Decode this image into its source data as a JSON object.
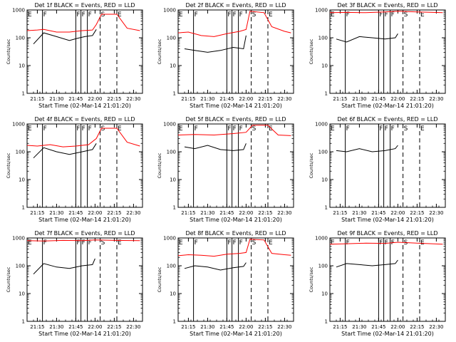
{
  "colors": {
    "background": "#ffffff",
    "events": "#000000",
    "lld": "#ff0000",
    "axes": "#000000"
  },
  "chart_data": [
    {
      "type": "line",
      "title": "Det 1f BLACK = Events, RED = LLD",
      "xlabel": "Start Time (02-Mar-14 21:01:20)",
      "ylabel": "Counts/sec",
      "yscale": "log",
      "ylim": [
        1,
        1000
      ],
      "xlim": [
        "21:07",
        "22:37"
      ],
      "xtick_labels": [
        "21:15",
        "21:30",
        "21:45",
        "22:00",
        "22:15",
        "22:30"
      ],
      "ytick_labels": [
        "1",
        "10",
        "100",
        "1000"
      ],
      "series": [
        {
          "name": "Events",
          "color": "#000000",
          "x": [
            "21:12",
            "21:20",
            "21:30",
            "21:40",
            "21:46",
            "21:52",
            "21:58",
            "22:01"
          ],
          "y": [
            60,
            150,
            110,
            80,
            95,
            110,
            120,
            200
          ]
        },
        {
          "name": "LLD",
          "color": "#ff0000",
          "x": [
            "21:07",
            "21:15",
            "21:20",
            "21:30",
            "21:40",
            "21:50",
            "21:58",
            "22:01",
            "22:05",
            "22:17",
            "22:25",
            "22:35"
          ],
          "y": [
            180,
            190,
            200,
            160,
            160,
            180,
            190,
            300,
            700,
            700,
            220,
            180
          ]
        }
      ],
      "markers": [
        {
          "label": "E",
          "x": "21:07",
          "style": "solid"
        },
        {
          "label": "F",
          "x": "21:19",
          "style": "solid"
        },
        {
          "label": "F",
          "x": "21:45",
          "style": "solid"
        },
        {
          "label": "F",
          "x": "21:49",
          "style": "solid"
        },
        {
          "label": "F",
          "x": "21:54",
          "style": "solid"
        },
        {
          "label": "S",
          "x": "22:04",
          "style": "dashed"
        },
        {
          "label": "E",
          "x": "22:17",
          "style": "dashed"
        }
      ]
    },
    {
      "type": "line",
      "title": "Det 2f BLACK = Events, RED = LLD",
      "xlabel": "Start Time (02-Mar-14 21:01:20)",
      "ylabel": "Counts/sec",
      "yscale": "log",
      "ylim": [
        1,
        1000
      ],
      "xlim": [
        "21:07",
        "22:37"
      ],
      "xtick_labels": [
        "21:15",
        "21:30",
        "21:45",
        "22:00",
        "22:15",
        "22:30"
      ],
      "ytick_labels": [
        "1",
        "10",
        "100",
        "1000"
      ],
      "series": [
        {
          "name": "Events",
          "color": "#000000",
          "x": [
            "21:12",
            "21:20",
            "21:30",
            "21:40",
            "21:50",
            "21:58",
            "22:00"
          ],
          "y": [
            40,
            35,
            30,
            35,
            45,
            40,
            120
          ]
        },
        {
          "name": "LLD",
          "color": "#ff0000",
          "x": [
            "21:07",
            "21:15",
            "21:25",
            "21:35",
            "21:45",
            "21:55",
            "22:00",
            "22:03",
            "22:14",
            "22:20",
            "22:30",
            "22:35"
          ],
          "y": [
            150,
            160,
            120,
            110,
            140,
            170,
            200,
            900,
            800,
            250,
            170,
            150
          ]
        }
      ],
      "markers": [
        {
          "label": "E",
          "x": "21:07",
          "style": "solid"
        },
        {
          "label": "F",
          "x": "21:19",
          "style": "solid"
        },
        {
          "label": "F",
          "x": "21:45",
          "style": "solid"
        },
        {
          "label": "F",
          "x": "21:49",
          "style": "solid"
        },
        {
          "label": "F",
          "x": "21:54",
          "style": "solid"
        },
        {
          "label": "S",
          "x": "22:04",
          "style": "dashed"
        },
        {
          "label": "E",
          "x": "22:17",
          "style": "dashed"
        }
      ]
    },
    {
      "type": "line",
      "title": "Det 3f BLACK = Events, RED = LLD",
      "xlabel": "Start Time (02-Mar-14 21:01:20)",
      "ylabel": "Counts/sec",
      "yscale": "log",
      "ylim": [
        1,
        1000
      ],
      "xlim": [
        "21:07",
        "22:37"
      ],
      "xtick_labels": [
        "21:15",
        "21:30",
        "21:45",
        "22:00",
        "22:15",
        "22:30"
      ],
      "ytick_labels": [
        "1",
        "10",
        "100",
        "1000"
      ],
      "series": [
        {
          "name": "Events",
          "color": "#000000",
          "x": [
            "21:12",
            "21:20",
            "21:30",
            "21:40",
            "21:50",
            "21:58",
            "22:00"
          ],
          "y": [
            90,
            70,
            110,
            100,
            90,
            100,
            140
          ]
        },
        {
          "name": "LLD",
          "color": "#ff0000",
          "x": [
            "21:07",
            "21:20",
            "21:35",
            "21:50",
            "22:00",
            "22:15",
            "22:35"
          ],
          "y": [
            800,
            820,
            800,
            850,
            900,
            850,
            800
          ]
        }
      ],
      "markers": [
        {
          "label": "E",
          "x": "21:07",
          "style": "solid"
        },
        {
          "label": "F",
          "x": "21:19",
          "style": "solid"
        },
        {
          "label": "F",
          "x": "21:45",
          "style": "solid"
        },
        {
          "label": "F",
          "x": "21:49",
          "style": "solid"
        },
        {
          "label": "F",
          "x": "21:54",
          "style": "solid"
        },
        {
          "label": "S",
          "x": "22:04",
          "style": "dashed"
        },
        {
          "label": "E",
          "x": "22:17",
          "style": "dashed"
        }
      ]
    },
    {
      "type": "line",
      "title": "Det 4f BLACK = Events, RED = LLD",
      "xlabel": "Start Time (02-Mar-14 21:01:20)",
      "ylabel": "Counts/sec",
      "yscale": "log",
      "ylim": [
        1,
        1000
      ],
      "xlim": [
        "21:07",
        "22:37"
      ],
      "xtick_labels": [
        "21:15",
        "21:30",
        "21:45",
        "22:00",
        "22:15",
        "22:30"
      ],
      "ytick_labels": [
        "1",
        "10",
        "100",
        "1000"
      ],
      "series": [
        {
          "name": "Events",
          "color": "#000000",
          "x": [
            "21:12",
            "21:20",
            "21:30",
            "21:40",
            "21:50",
            "21:58",
            "22:01"
          ],
          "y": [
            60,
            140,
            100,
            80,
            100,
            120,
            200
          ]
        },
        {
          "name": "LLD",
          "color": "#ff0000",
          "x": [
            "21:07",
            "21:15",
            "21:25",
            "21:35",
            "21:45",
            "21:55",
            "22:01",
            "22:05",
            "22:17",
            "22:25",
            "22:35"
          ],
          "y": [
            170,
            160,
            180,
            150,
            160,
            180,
            300,
            700,
            700,
            220,
            160
          ]
        }
      ],
      "markers": [
        {
          "label": "E",
          "x": "21:07",
          "style": "solid"
        },
        {
          "label": "F",
          "x": "21:19",
          "style": "solid"
        },
        {
          "label": "F",
          "x": "21:45",
          "style": "solid"
        },
        {
          "label": "F",
          "x": "21:49",
          "style": "solid"
        },
        {
          "label": "F",
          "x": "21:54",
          "style": "solid"
        },
        {
          "label": "S",
          "x": "22:04",
          "style": "dashed"
        },
        {
          "label": "E",
          "x": "22:17",
          "style": "dashed"
        }
      ]
    },
    {
      "type": "line",
      "title": "Det 5f BLACK = Events, RED = LLD",
      "xlabel": "Start Time (02-Mar-14 21:01:20)",
      "ylabel": "Counts/sec",
      "yscale": "log",
      "ylim": [
        1,
        1000
      ],
      "xlim": [
        "21:07",
        "22:37"
      ],
      "xtick_labels": [
        "21:15",
        "21:30",
        "21:45",
        "22:00",
        "22:15",
        "22:30"
      ],
      "ytick_labels": [
        "1",
        "10",
        "100",
        "1000"
      ],
      "series": [
        {
          "name": "Events",
          "color": "#000000",
          "x": [
            "21:12",
            "21:20",
            "21:30",
            "21:40",
            "21:50",
            "21:58",
            "22:00"
          ],
          "y": [
            150,
            130,
            170,
            120,
            110,
            120,
            200
          ]
        },
        {
          "name": "LLD",
          "color": "#ff0000",
          "x": [
            "21:07",
            "21:20",
            "21:35",
            "21:50",
            "22:00",
            "22:05",
            "22:17",
            "22:25",
            "22:35"
          ],
          "y": [
            400,
            420,
            400,
            450,
            500,
            900,
            900,
            400,
            380
          ]
        }
      ],
      "markers": [
        {
          "label": "E",
          "x": "21:07",
          "style": "solid"
        },
        {
          "label": "F",
          "x": "21:19",
          "style": "solid"
        },
        {
          "label": "F",
          "x": "21:45",
          "style": "solid"
        },
        {
          "label": "F",
          "x": "21:49",
          "style": "solid"
        },
        {
          "label": "F",
          "x": "21:54",
          "style": "solid"
        },
        {
          "label": "S",
          "x": "22:04",
          "style": "dashed"
        },
        {
          "label": "E",
          "x": "22:17",
          "style": "dashed"
        }
      ]
    },
    {
      "type": "line",
      "title": "Det 6f BLACK = Events, RED = LLD",
      "xlabel": "Start Time (02-Mar-14 21:01:20)",
      "ylabel": "Counts/sec",
      "yscale": "log",
      "ylim": [
        1,
        1000
      ],
      "xlim": [
        "21:07",
        "22:37"
      ],
      "xtick_labels": [
        "21:15",
        "21:30",
        "21:45",
        "22:00",
        "22:15",
        "22:30"
      ],
      "ytick_labels": [
        "1",
        "10",
        "100",
        "1000"
      ],
      "series": [
        {
          "name": "Events",
          "color": "#000000",
          "x": [
            "21:12",
            "21:20",
            "21:30",
            "21:40",
            "21:50",
            "21:58",
            "22:00"
          ],
          "y": [
            110,
            100,
            130,
            100,
            110,
            130,
            170
          ]
        }
      ],
      "markers": [
        {
          "label": "E",
          "x": "21:07",
          "style": "solid"
        },
        {
          "label": "F",
          "x": "21:19",
          "style": "solid"
        },
        {
          "label": "F",
          "x": "21:45",
          "style": "solid"
        },
        {
          "label": "F",
          "x": "21:49",
          "style": "solid"
        },
        {
          "label": "F",
          "x": "21:54",
          "style": "solid"
        },
        {
          "label": "S",
          "x": "22:04",
          "style": "dashed"
        },
        {
          "label": "E",
          "x": "22:17",
          "style": "dashed"
        }
      ]
    },
    {
      "type": "line",
      "title": "Det 7f BLACK = Events, RED = LLD",
      "xlabel": "Start Time (02-Mar-14 21:01:20)",
      "ylabel": "Counts/sec",
      "yscale": "log",
      "ylim": [
        1,
        1000
      ],
      "xlim": [
        "21:07",
        "22:37"
      ],
      "xtick_labels": [
        "21:15",
        "21:30",
        "21:45",
        "22:00",
        "22:15",
        "22:30"
      ],
      "ytick_labels": [
        "1",
        "10",
        "100",
        "1000"
      ],
      "series": [
        {
          "name": "Events",
          "color": "#000000",
          "x": [
            "21:12",
            "21:20",
            "21:30",
            "21:40",
            "21:50",
            "21:58",
            "22:00"
          ],
          "y": [
            50,
            120,
            90,
            80,
            100,
            110,
            180
          ]
        },
        {
          "name": "LLD",
          "color": "#ff0000",
          "x": [
            "21:07",
            "21:20",
            "21:35",
            "21:50",
            "22:00",
            "22:15",
            "22:35"
          ],
          "y": [
            800,
            780,
            820,
            800,
            850,
            820,
            800
          ]
        }
      ],
      "markers": [
        {
          "label": "E",
          "x": "21:07",
          "style": "solid"
        },
        {
          "label": "F",
          "x": "21:19",
          "style": "solid"
        },
        {
          "label": "F",
          "x": "21:45",
          "style": "solid"
        },
        {
          "label": "F",
          "x": "21:49",
          "style": "solid"
        },
        {
          "label": "F",
          "x": "21:54",
          "style": "solid"
        },
        {
          "label": "S",
          "x": "22:04",
          "style": "dashed"
        },
        {
          "label": "E",
          "x": "22:17",
          "style": "dashed"
        }
      ]
    },
    {
      "type": "line",
      "title": "Det 8f BLACK = Events, RED = LLD",
      "xlabel": "Start Time (02-Mar-14 21:01:20)",
      "ylabel": "Counts/sec",
      "yscale": "log",
      "ylim": [
        1,
        1000
      ],
      "xlim": [
        "21:07",
        "22:37"
      ],
      "xtick_labels": [
        "21:15",
        "21:30",
        "21:45",
        "22:00",
        "22:15",
        "22:30"
      ],
      "ytick_labels": [
        "1",
        "10",
        "100",
        "1000"
      ],
      "series": [
        {
          "name": "Events",
          "color": "#000000",
          "x": [
            "21:12",
            "21:20",
            "21:30",
            "21:40",
            "21:50",
            "21:58",
            "22:00"
          ],
          "y": [
            80,
            100,
            90,
            70,
            85,
            95,
            130
          ]
        },
        {
          "name": "LLD",
          "color": "#ff0000",
          "x": [
            "21:07",
            "21:15",
            "21:25",
            "21:35",
            "21:45",
            "21:55",
            "22:00",
            "22:03",
            "22:14",
            "22:20",
            "22:30",
            "22:35"
          ],
          "y": [
            230,
            250,
            240,
            220,
            260,
            280,
            300,
            900,
            850,
            280,
            250,
            240
          ]
        }
      ],
      "markers": [
        {
          "label": "E",
          "x": "21:07",
          "style": "solid"
        },
        {
          "label": "F",
          "x": "21:19",
          "style": "solid"
        },
        {
          "label": "F",
          "x": "21:45",
          "style": "solid"
        },
        {
          "label": "F",
          "x": "21:49",
          "style": "solid"
        },
        {
          "label": "F",
          "x": "21:54",
          "style": "solid"
        },
        {
          "label": "S",
          "x": "22:04",
          "style": "dashed"
        },
        {
          "label": "E",
          "x": "22:17",
          "style": "dashed"
        }
      ]
    },
    {
      "type": "line",
      "title": "Det 9f BLACK = Events, RED = LLD",
      "xlabel": "Start Time (02-Mar-14 21:01:20)",
      "ylabel": "Counts/sec",
      "yscale": "log",
      "ylim": [
        1,
        1000
      ],
      "xlim": [
        "21:07",
        "22:37"
      ],
      "xtick_labels": [
        "21:15",
        "21:30",
        "21:45",
        "22:00",
        "22:15",
        "22:30"
      ],
      "ytick_labels": [
        "1",
        "10",
        "100",
        "1000"
      ],
      "series": [
        {
          "name": "Events",
          "color": "#000000",
          "x": [
            "21:12",
            "21:20",
            "21:30",
            "21:40",
            "21:50",
            "21:58",
            "22:00"
          ],
          "y": [
            90,
            120,
            110,
            100,
            110,
            120,
            160
          ]
        },
        {
          "name": "LLD",
          "color": "#ff0000",
          "x": [
            "21:07",
            "21:20",
            "21:35",
            "21:50",
            "22:00",
            "22:15",
            "22:35"
          ],
          "y": [
            600,
            620,
            650,
            640,
            700,
            650,
            600
          ]
        }
      ],
      "markers": [
        {
          "label": "E",
          "x": "21:07",
          "style": "solid"
        },
        {
          "label": "F",
          "x": "21:19",
          "style": "solid"
        },
        {
          "label": "F",
          "x": "21:45",
          "style": "solid"
        },
        {
          "label": "F",
          "x": "21:49",
          "style": "solid"
        },
        {
          "label": "F",
          "x": "21:54",
          "style": "solid"
        },
        {
          "label": "S",
          "x": "22:04",
          "style": "dashed"
        },
        {
          "label": "E",
          "x": "22:17",
          "style": "dashed"
        }
      ]
    }
  ]
}
